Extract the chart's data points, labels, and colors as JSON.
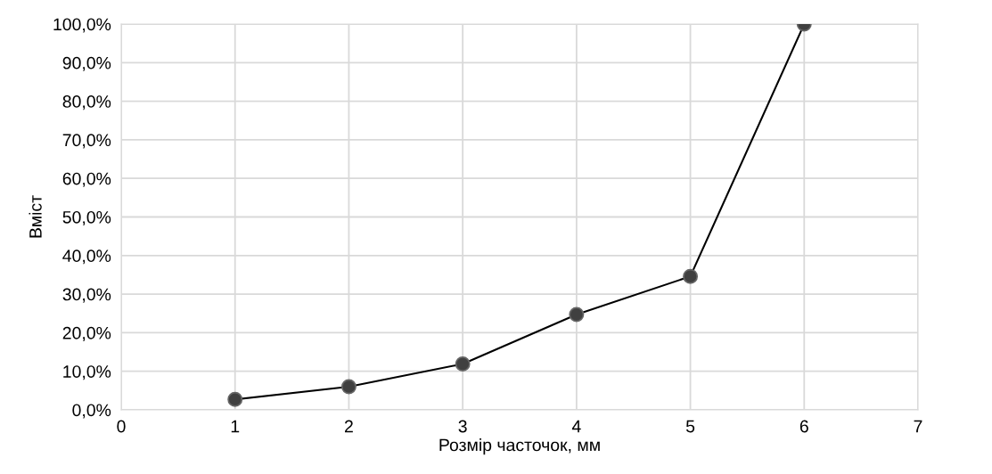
{
  "chart_data": {
    "type": "line",
    "xlabel": "Розмір часточок, мм",
    "ylabel": "Вміст",
    "x": [
      1,
      2,
      3,
      4,
      5,
      6
    ],
    "series": [
      {
        "color": "#000000",
        "values": [
          2.7,
          6.0,
          11.9,
          24.7,
          34.6,
          100.0
        ]
      }
    ],
    "marker": "circle",
    "line_style": "solid",
    "xlim": [
      0,
      7
    ],
    "xticks": [
      0,
      1,
      2,
      3,
      4,
      5,
      6,
      7
    ],
    "ylim": [
      0,
      100
    ],
    "yticks": [
      {
        "value": 0,
        "label": "0,0%"
      },
      {
        "value": 10,
        "label": "10,0%"
      },
      {
        "value": 20,
        "label": "20,0%"
      },
      {
        "value": 30,
        "label": "30,0%"
      },
      {
        "value": 40,
        "label": "40,0%"
      },
      {
        "value": 50,
        "label": "50,0%"
      },
      {
        "value": 60,
        "label": "60,0%"
      },
      {
        "value": 70,
        "label": "70,0%"
      },
      {
        "value": 80,
        "label": "80,0%"
      },
      {
        "value": 90,
        "label": "90,0%"
      },
      {
        "value": 100,
        "label": "100,0%"
      }
    ],
    "grid": true
  }
}
